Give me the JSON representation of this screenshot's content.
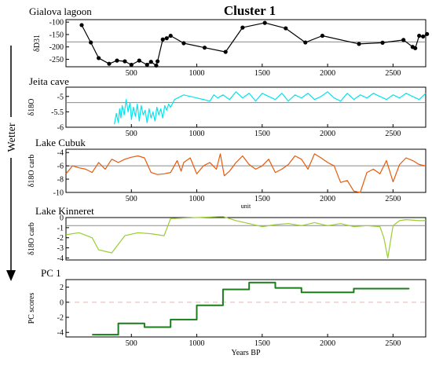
{
  "figure": {
    "title": "Cluster 1",
    "arrow_label": "Wetter",
    "xlabel": "Years BP",
    "x_ticks": [
      500,
      1000,
      1500,
      2000,
      2500
    ],
    "mid_axis_note": "unit"
  },
  "chart_data": [
    {
      "type": "line",
      "title": "Gialova lagoon",
      "ylabel": "δD31",
      "color": "#000000",
      "markers": true,
      "xlim": [
        0,
        2750
      ],
      "ylim": [
        -280,
        -90
      ],
      "y_ticks": [
        -100,
        -150,
        -200,
        -250
      ],
      "reference_line": -180,
      "x": [
        120,
        190,
        250,
        330,
        390,
        450,
        500,
        560,
        620,
        650,
        690,
        700,
        740,
        770,
        800,
        900,
        1060,
        1220,
        1350,
        1520,
        1680,
        1830,
        1960,
        2240,
        2420,
        2580,
        2650,
        2670,
        2700,
        2730,
        2760
      ],
      "values": [
        -112,
        -182,
        -245,
        -268,
        -255,
        -258,
        -272,
        -255,
        -272,
        -260,
        -275,
        -258,
        -170,
        -165,
        -155,
        -185,
        -203,
        -220,
        -122,
        -103,
        -125,
        -182,
        -155,
        -188,
        -183,
        -172,
        -200,
        -205,
        -155,
        -158,
        -148
      ]
    },
    {
      "type": "line",
      "title": "Jeita cave",
      "ylabel": "δ18O",
      "color": "#00e5ee",
      "xlim": [
        0,
        2750
      ],
      "ylim": [
        -6,
        -4.7
      ],
      "y_ticks": [
        -5,
        -5.5,
        -6
      ],
      "reference_line": -5.2,
      "x": [
        370,
        385,
        400,
        410,
        420,
        430,
        445,
        460,
        475,
        490,
        500,
        515,
        530,
        545,
        560,
        575,
        590,
        605,
        620,
        635,
        650,
        665,
        680,
        695,
        710,
        725,
        740,
        755,
        770,
        785,
        800,
        830,
        900,
        1000,
        1100,
        1130,
        1160,
        1200,
        1250,
        1300,
        1350,
        1400,
        1450,
        1500,
        1550,
        1600,
        1650,
        1700,
        1750,
        1800,
        1850,
        1900,
        1950,
        2000,
        2050,
        2100,
        2150,
        2200,
        2250,
        2300,
        2350,
        2400,
        2450,
        2500,
        2550,
        2600,
        2650,
        2700,
        2750
      ],
      "values": [
        -5.9,
        -5.55,
        -5.85,
        -5.4,
        -5.7,
        -5.3,
        -5.6,
        -5.1,
        -5.5,
        -5.2,
        -5.75,
        -5.35,
        -5.65,
        -5.25,
        -5.8,
        -5.3,
        -5.6,
        -5.45,
        -5.85,
        -5.4,
        -5.7,
        -5.5,
        -5.8,
        -5.35,
        -5.6,
        -5.4,
        -5.7,
        -5.3,
        -5.45,
        -5.25,
        -5.35,
        -5.1,
        -4.95,
        -5.05,
        -5.15,
        -4.95,
        -5.05,
        -4.95,
        -5.1,
        -4.85,
        -5.05,
        -4.9,
        -5.15,
        -4.9,
        -5.0,
        -5.1,
        -4.9,
        -5.15,
        -4.95,
        -5.05,
        -4.9,
        -5.1,
        -5.0,
        -4.85,
        -5.05,
        -5.15,
        -4.9,
        -5.1,
        -4.95,
        -5.05,
        -4.9,
        -5.0,
        -5.1,
        -4.95,
        -5.05,
        -4.9,
        -5.0,
        -5.1,
        -4.9
      ]
    },
    {
      "type": "line",
      "title": "Lake Cubuk",
      "ylabel": "δ18O carb",
      "color": "#e8590c",
      "xlim": [
        0,
        2750
      ],
      "ylim": [
        -10,
        -3.5
      ],
      "y_ticks": [
        -4,
        -6,
        -8,
        -10
      ],
      "reference_line": -6,
      "x": [
        0,
        50,
        100,
        150,
        200,
        250,
        300,
        350,
        400,
        450,
        500,
        550,
        600,
        650,
        700,
        750,
        800,
        850,
        880,
        900,
        950,
        1000,
        1050,
        1100,
        1150,
        1180,
        1210,
        1250,
        1300,
        1350,
        1400,
        1450,
        1500,
        1550,
        1600,
        1650,
        1700,
        1750,
        1800,
        1850,
        1900,
        1950,
        2000,
        2050,
        2100,
        2150,
        2200,
        2250,
        2300,
        2350,
        2400,
        2450,
        2500,
        2550,
        2600,
        2650,
        2700,
        2750
      ],
      "values": [
        -7.2,
        -6.0,
        -6.3,
        -6.5,
        -7.0,
        -5.5,
        -6.5,
        -5.0,
        -5.5,
        -5.0,
        -4.7,
        -4.5,
        -4.8,
        -7.0,
        -7.3,
        -7.2,
        -7.0,
        -5.2,
        -6.8,
        -5.5,
        -4.8,
        -7.2,
        -6.0,
        -5.5,
        -6.5,
        -4.2,
        -7.5,
        -6.8,
        -5.5,
        -4.5,
        -5.8,
        -6.5,
        -6.0,
        -5.0,
        -7.0,
        -6.5,
        -5.8,
        -4.5,
        -5.0,
        -6.5,
        -4.2,
        -4.8,
        -5.5,
        -6.0,
        -8.5,
        -8.2,
        -9.8,
        -10.0,
        -7.0,
        -6.5,
        -7.2,
        -5.2,
        -8.4,
        -5.8,
        -4.8,
        -5.2,
        -5.8,
        -6.0
      ]
    },
    {
      "type": "line",
      "title": "Lake Kinneret",
      "ylabel": "δ18O carb",
      "color": "#9acd32",
      "xlim": [
        0,
        2750
      ],
      "ylim": [
        -4.2,
        0
      ],
      "y_ticks": [
        0,
        -1,
        -2,
        -3,
        -4
      ],
      "reference_line": -0.8,
      "x": [
        0,
        100,
        200,
        250,
        350,
        450,
        550,
        650,
        750,
        800,
        900,
        1000,
        1100,
        1200,
        1300,
        1400,
        1500,
        1600,
        1700,
        1800,
        1900,
        2000,
        2100,
        2200,
        2300,
        2400,
        2430,
        2460,
        2500,
        2550,
        2600,
        2700,
        2750
      ],
      "values": [
        -1.7,
        -1.5,
        -2.0,
        -3.2,
        -3.5,
        -1.8,
        -1.5,
        -1.6,
        -1.8,
        -0.1,
        -0.05,
        0.0,
        0.05,
        0.1,
        -0.3,
        -0.6,
        -0.9,
        -0.7,
        -0.6,
        -0.8,
        -0.5,
        -0.8,
        -0.6,
        -0.9,
        -0.8,
        -0.9,
        -2.0,
        -4.0,
        -0.8,
        -0.3,
        -0.2,
        -0.3,
        -0.3
      ]
    },
    {
      "type": "line",
      "title": "PC 1",
      "ylabel": "PC scores",
      "color": "#1a7f1a",
      "step": true,
      "xlim": [
        0,
        2750
      ],
      "ylim": [
        -4.6,
        3
      ],
      "y_ticks": [
        2,
        0,
        -2,
        -4
      ],
      "reference_line": 0,
      "x": [
        200,
        400,
        600,
        800,
        1000,
        1200,
        1400,
        1600,
        1800,
        2000,
        2200,
        2400,
        2620
      ],
      "values": [
        -4.3,
        -2.8,
        -3.3,
        -2.3,
        -0.4,
        1.7,
        2.6,
        1.9,
        1.3,
        1.3,
        1.8,
        1.8,
        1.9
      ]
    }
  ]
}
